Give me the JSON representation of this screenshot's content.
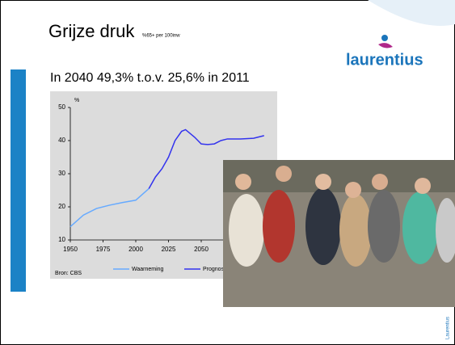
{
  "slide": {
    "title": "Grijze druk",
    "title_note": "%65+ per 100inw",
    "logo": "laurentius",
    "text": "In 2040 49,3% t.o.v. 25,6% in 2011",
    "side_note": "Laurentius"
  },
  "chart_data": {
    "type": "line",
    "y_unit": "%",
    "source": "Bron: CBS",
    "x": [
      1950,
      1960,
      1970,
      1980,
      1990,
      2000,
      2010,
      2015,
      2020,
      2025,
      2030,
      2035,
      2038,
      2045,
      2050,
      2055,
      2060,
      2065,
      2070,
      2080,
      2090,
      2098
    ],
    "series": [
      {
        "name": "Waarneming",
        "color": "#66aaff",
        "values": [
          14,
          17.5,
          19.5,
          20.5,
          21.3,
          22,
          25.5,
          null,
          null,
          null,
          null,
          null,
          null,
          null,
          null,
          null,
          null,
          null,
          null,
          null,
          null,
          null
        ]
      },
      {
        "name": "Prognose",
        "color": "#3333ee",
        "values": [
          null,
          null,
          null,
          null,
          null,
          null,
          25.5,
          29,
          31.5,
          35,
          40,
          42.8,
          43.3,
          41,
          39,
          38.8,
          39,
          40,
          40.5,
          40.5,
          40.7,
          41.5
        ]
      }
    ],
    "xlim": [
      1950,
      2100
    ],
    "ylim": [
      10,
      50
    ],
    "xticks": [
      1950,
      1975,
      2000,
      2025,
      2050
    ],
    "yticks": [
      10,
      20,
      30,
      40,
      50
    ],
    "grid": false
  }
}
